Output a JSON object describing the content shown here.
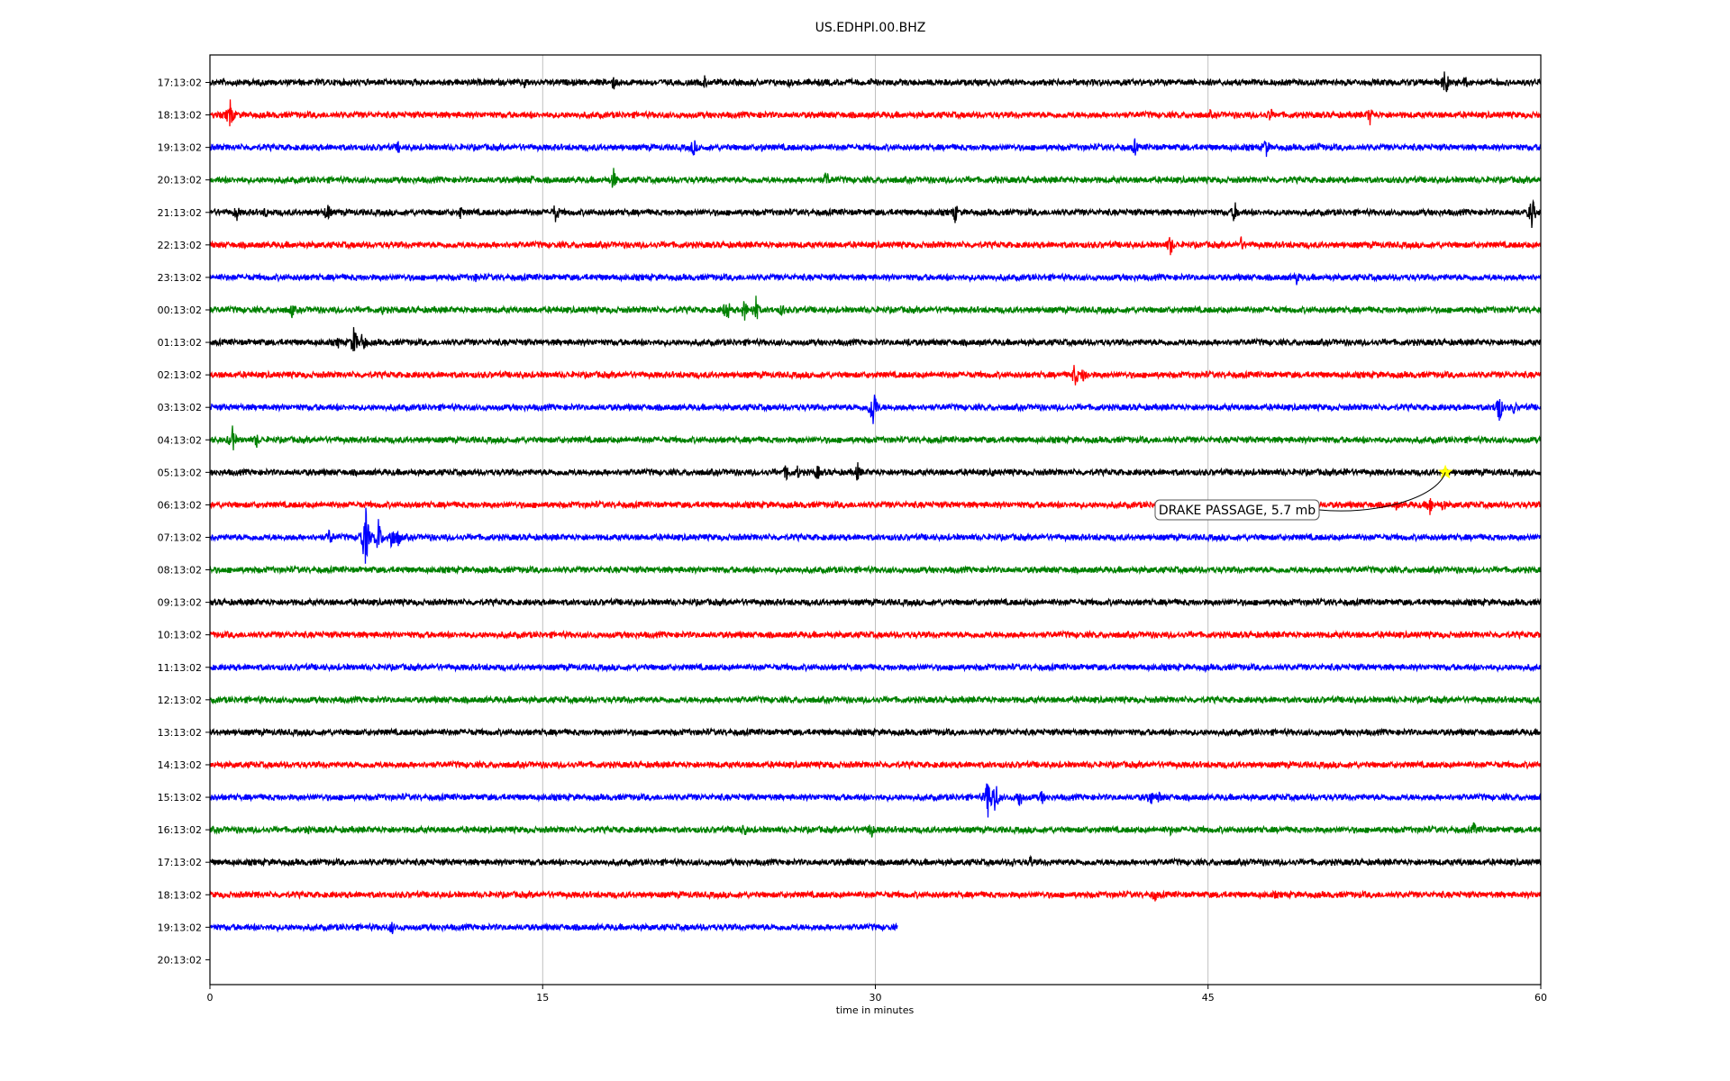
{
  "chart_data": {
    "type": "line",
    "title": "US.EDHPI.00.BHZ",
    "xlabel": "time in minutes",
    "ylabel": "",
    "xlim": [
      0,
      60
    ],
    "x_ticks": [
      0,
      15,
      30,
      45,
      60
    ],
    "grid": "vertical",
    "colors": [
      "#000000",
      "#ff0000",
      "#0000ff",
      "#008000"
    ],
    "row_labels": [
      "17:13:02",
      "18:13:02",
      "19:13:02",
      "20:13:02",
      "21:13:02",
      "22:13:02",
      "23:13:02",
      "00:13:02",
      "01:13:02",
      "02:13:02",
      "03:13:02",
      "04:13:02",
      "05:13:02",
      "06:13:02",
      "07:13:02",
      "08:13:02",
      "09:13:02",
      "10:13:02",
      "11:13:02",
      "12:13:02",
      "13:13:02",
      "14:13:02",
      "15:13:02",
      "16:13:02",
      "17:13:02",
      "18:13:02",
      "19:13:02",
      "20:13:02"
    ],
    "traces": [
      {
        "color": "#000000",
        "end": 60,
        "spikes": [
          [
            10.5,
            5
          ],
          [
            14.2,
            9
          ],
          [
            18.2,
            10
          ],
          [
            22.3,
            9
          ],
          [
            26.1,
            6
          ],
          [
            29.8,
            5
          ],
          [
            55.7,
            17
          ],
          [
            56.6,
            8
          ]
        ]
      },
      {
        "color": "#ff0000",
        "end": 60,
        "spikes": [
          [
            0.9,
            20
          ],
          [
            21.5,
            5
          ],
          [
            24.9,
            6
          ],
          [
            45.1,
            6
          ],
          [
            47.8,
            10
          ],
          [
            52.3,
            12
          ]
        ]
      },
      {
        "color": "#0000ff",
        "end": 60,
        "spikes": [
          [
            8.5,
            8
          ],
          [
            21.8,
            12
          ],
          [
            24.9,
            6
          ],
          [
            31.5,
            5
          ],
          [
            41.7,
            11
          ],
          [
            47.6,
            14
          ],
          [
            50.0,
            6
          ]
        ]
      },
      {
        "color": "#008000",
        "end": 60,
        "spikes": [
          [
            14.5,
            7
          ],
          [
            18.2,
            14
          ],
          [
            27.8,
            12
          ],
          [
            35.4,
            6
          ]
        ]
      },
      {
        "color": "#000000",
        "end": 60,
        "spikes": [
          [
            1.2,
            11
          ],
          [
            2.5,
            8
          ],
          [
            5.3,
            13
          ],
          [
            11.3,
            9
          ],
          [
            15.6,
            14
          ],
          [
            33.6,
            13
          ],
          [
            46.2,
            14
          ],
          [
            59.6,
            20
          ]
        ]
      },
      {
        "color": "#ff0000",
        "end": 60,
        "spikes": [
          [
            43.3,
            14
          ],
          [
            46.5,
            10
          ]
        ]
      },
      {
        "color": "#0000ff",
        "end": 60,
        "spikes": [
          [
            12.0,
            6
          ],
          [
            49.0,
            10
          ]
        ]
      },
      {
        "color": "#008000",
        "end": 60,
        "spikes": [
          [
            3.7,
            10
          ],
          [
            7.8,
            7
          ],
          [
            23.3,
            17
          ],
          [
            24.1,
            14
          ],
          [
            24.6,
            18
          ],
          [
            25.8,
            9
          ]
        ]
      },
      {
        "color": "#000000",
        "end": 60,
        "spikes": [
          [
            5.8,
            8
          ],
          [
            6.5,
            20
          ],
          [
            6.9,
            14
          ],
          [
            31.5,
            6
          ]
        ]
      },
      {
        "color": "#ff0000",
        "end": 60,
        "spikes": [
          [
            39.0,
            16
          ],
          [
            39.4,
            12
          ]
        ]
      },
      {
        "color": "#0000ff",
        "end": 60,
        "spikes": [
          [
            29.9,
            28
          ],
          [
            58.1,
            22
          ],
          [
            58.8,
            9
          ]
        ]
      },
      {
        "color": "#008000",
        "end": 60,
        "spikes": [
          [
            1.0,
            18
          ],
          [
            2.1,
            10
          ]
        ]
      },
      {
        "color": "#000000",
        "end": 60,
        "spikes": [
          [
            26.0,
            12
          ],
          [
            26.5,
            9
          ],
          [
            27.4,
            10
          ],
          [
            29.2,
            12
          ],
          [
            35.3,
            6
          ],
          [
            51.2,
            7
          ]
        ]
      },
      {
        "color": "#ff0000",
        "end": 60,
        "spikes": [
          [
            53.5,
            7
          ],
          [
            55.0,
            14
          ],
          [
            55.6,
            9
          ]
        ]
      },
      {
        "color": "#0000ff",
        "end": 60,
        "spikes": [
          [
            5.4,
            12
          ],
          [
            7.0,
            40
          ],
          [
            7.6,
            22
          ],
          [
            8.2,
            18
          ],
          [
            8.5,
            12
          ],
          [
            22.0,
            5
          ]
        ]
      },
      {
        "color": "#008000",
        "end": 60,
        "spikes": [
          [
            4.0,
            4
          ],
          [
            38.0,
            4
          ]
        ]
      },
      {
        "color": "#000000",
        "end": 60,
        "spikes": [
          [
            20.0,
            4
          ]
        ]
      },
      {
        "color": "#ff0000",
        "end": 60,
        "spikes": [
          [
            19.0,
            4
          ]
        ]
      },
      {
        "color": "#0000ff",
        "end": 60,
        "spikes": [
          [
            44.9,
            5
          ]
        ]
      },
      {
        "color": "#008000",
        "end": 60,
        "spikes": [
          [
            2.3,
            5
          ],
          [
            30.0,
            4
          ]
        ]
      },
      {
        "color": "#000000",
        "end": 60,
        "spikes": [
          [
            28.0,
            4
          ]
        ]
      },
      {
        "color": "#ff0000",
        "end": 60,
        "spikes": [
          [
            28.0,
            5
          ]
        ]
      },
      {
        "color": "#0000ff",
        "end": 60,
        "spikes": [
          [
            35.1,
            28
          ],
          [
            35.4,
            22
          ],
          [
            36.5,
            14
          ],
          [
            37.5,
            10
          ],
          [
            42.4,
            12
          ],
          [
            42.8,
            8
          ]
        ]
      },
      {
        "color": "#008000",
        "end": 60,
        "spikes": [
          [
            4.4,
            7
          ],
          [
            24.1,
            10
          ],
          [
            29.8,
            12
          ],
          [
            43.3,
            7
          ],
          [
            57.0,
            10
          ]
        ]
      },
      {
        "color": "#000000",
        "end": 60,
        "spikes": [
          [
            28.8,
            6
          ],
          [
            36.2,
            7
          ],
          [
            37.0,
            9
          ],
          [
            56.4,
            5
          ]
        ]
      },
      {
        "color": "#ff0000",
        "end": 60,
        "spikes": [
          [
            2.2,
            5
          ],
          [
            42.6,
            10
          ],
          [
            48.0,
            6
          ]
        ]
      },
      {
        "color": "#0000ff",
        "end": 31,
        "spikes": [
          [
            8.2,
            9
          ]
        ]
      },
      {
        "color": "#008000",
        "end": 0,
        "spikes": []
      }
    ],
    "event": {
      "label": "DRAKE PASSAGE, 5.7 mb",
      "row": 12,
      "time": 55.7,
      "marker": "star",
      "marker_color": "#ffff00"
    }
  }
}
